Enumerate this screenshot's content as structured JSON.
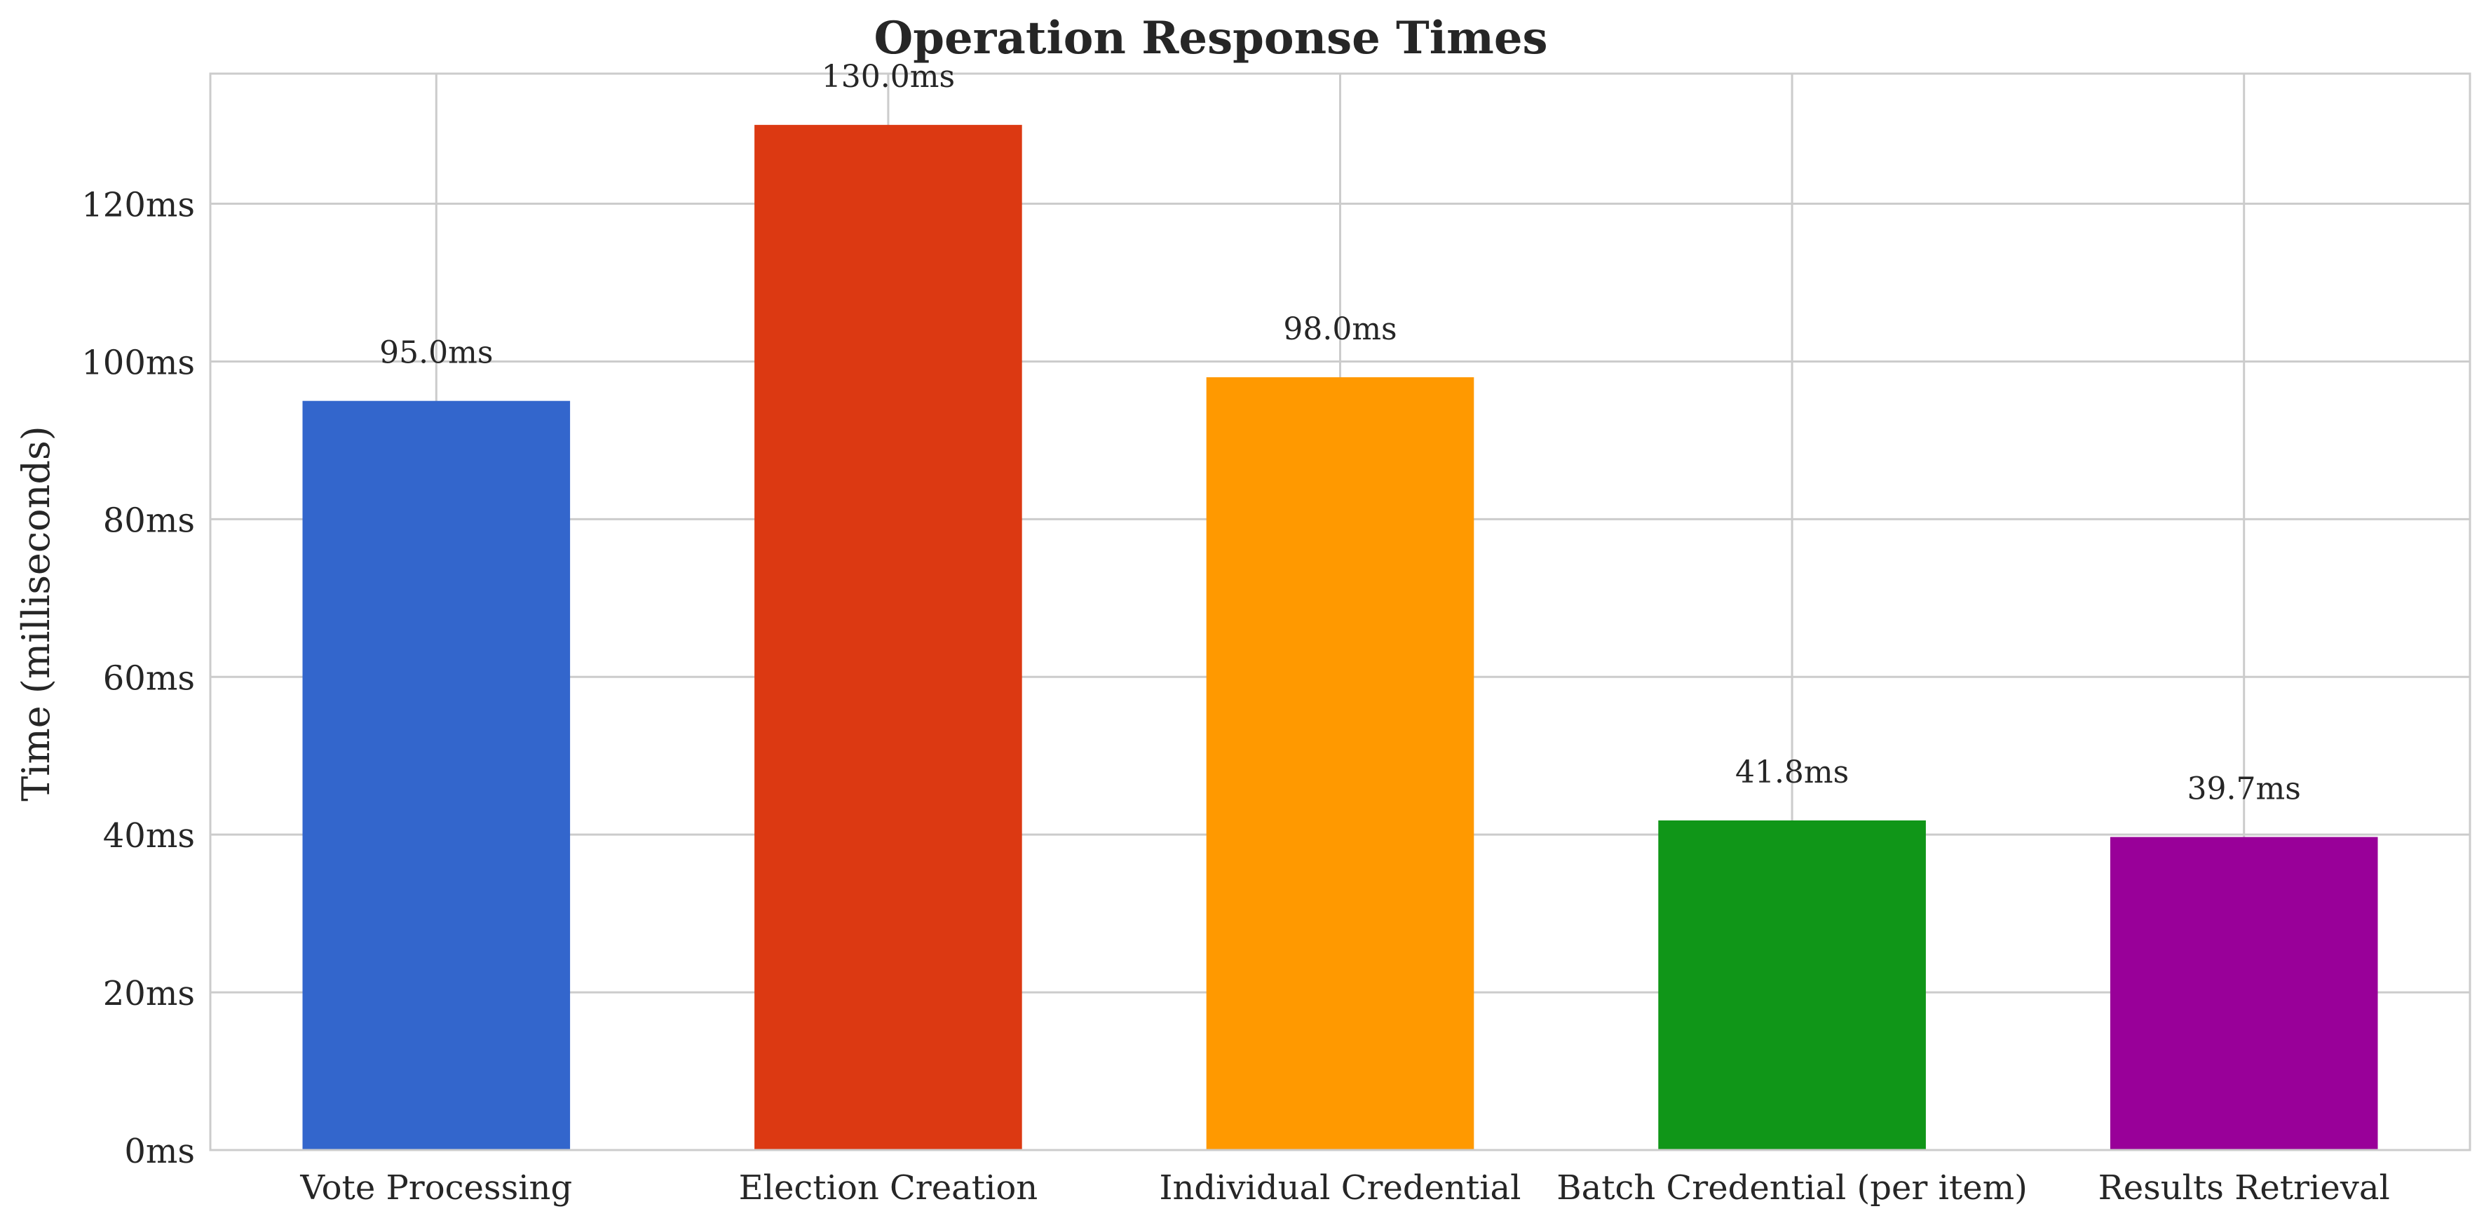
{
  "chart_data": {
    "type": "bar",
    "title": "Operation Response Times",
    "xlabel": "",
    "ylabel": "Time (milliseconds)",
    "categories": [
      "Vote Processing",
      "Election Creation",
      "Individual Credential",
      "Batch Credential (per item)",
      "Results Retrieval"
    ],
    "values": [
      95.0,
      130.0,
      98.0,
      41.8,
      39.7
    ],
    "value_labels": [
      "95.0ms",
      "130.0ms",
      "98.0ms",
      "41.8ms",
      "39.7ms"
    ],
    "colors": [
      "#3366cc",
      "#dc3912",
      "#ff9900",
      "#109618",
      "#990099"
    ],
    "ylim": [
      0,
      136.5
    ],
    "yticks": [
      0,
      20,
      40,
      60,
      80,
      100,
      120
    ],
    "ytick_labels": [
      "0ms",
      "20ms",
      "40ms",
      "60ms",
      "80ms",
      "100ms",
      "120ms"
    ],
    "grid": true,
    "legend": "none"
  }
}
